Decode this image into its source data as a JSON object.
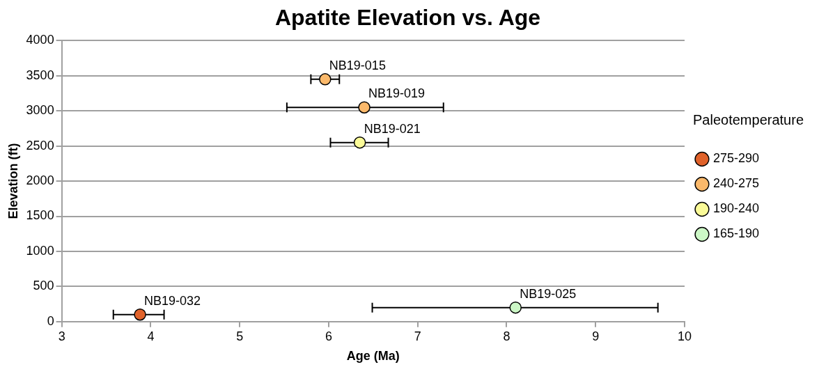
{
  "chart_data": {
    "type": "scatter",
    "title": "Apatite Elevation vs. Age",
    "xlabel": "Age (Ma)",
    "ylabel": "Elevation (ft)",
    "legend_title": "Paleotemperature",
    "xlim": [
      3,
      10
    ],
    "xticks": [
      3,
      4,
      5,
      6,
      7,
      8,
      9,
      10
    ],
    "ylim": [
      0,
      4000
    ],
    "yticks": [
      0,
      500,
      1000,
      1500,
      2000,
      2500,
      3000,
      3500,
      4000
    ],
    "grid": "y",
    "legend": "right",
    "marker": "circle",
    "series": [
      {
        "name": "275-290",
        "color": "#e0622a",
        "x": [
          3.88
        ],
        "values": [
          100
        ],
        "xerrors": [
          [
            3.58,
            4.15
          ]
        ]
      },
      {
        "name": "240-275",
        "color": "#fbb96b",
        "x": [
          5.96,
          6.4
        ],
        "values": [
          3450,
          3050
        ],
        "xerrors": [
          [
            5.8,
            6.12
          ],
          [
            5.53,
            7.29
          ]
        ]
      },
      {
        "name": "190-240",
        "color": "#fbfb98",
        "x": [
          6.35
        ],
        "values": [
          2550
        ],
        "xerrors": [
          [
            6.02,
            6.67
          ]
        ]
      },
      {
        "name": "165-190",
        "color": "#ccf7c6",
        "x": [
          8.1
        ],
        "values": [
          200
        ],
        "xerrors": [
          [
            6.49,
            9.7
          ]
        ]
      }
    ],
    "annotations": [
      {
        "text": "NB19-032",
        "x": 3.88,
        "y": 100
      },
      {
        "text": "NB19-015",
        "x": 5.96,
        "y": 3450
      },
      {
        "text": "NB19-019",
        "x": 6.4,
        "y": 3050
      },
      {
        "text": "NB19-021",
        "x": 6.35,
        "y": 2550
      },
      {
        "text": "NB19-025",
        "x": 8.1,
        "y": 200
      }
    ]
  }
}
